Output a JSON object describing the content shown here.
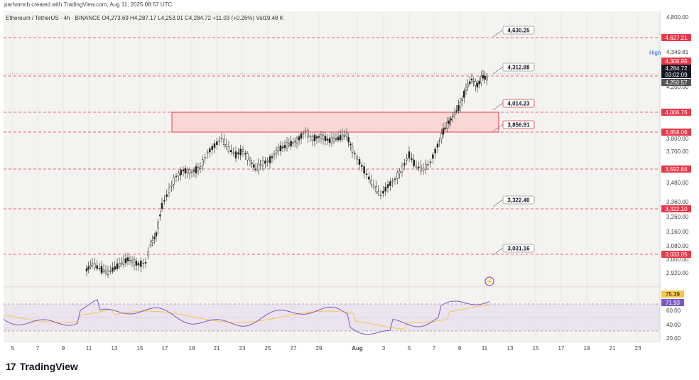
{
  "header": {
    "credit": "parhamnb created with TradingView.com, Aug 11, 2025 08:57 UTC"
  },
  "symbol": {
    "line": "Ethereum / TetherUS · 4h · BINANCE  O4,273.69  H4,287.17  L4,253.91  C4,284.72  +11.03 (+0.26%)  Vol19.48 K"
  },
  "price_scale": {
    "ticks": [
      "4,800.00",
      "4,349.81",
      "4,200.00",
      "3,800.00",
      "3,700.00",
      "3,480.00",
      "3,360.00",
      "3,260.00",
      "3,160.00",
      "3,080.00",
      "3,000.00",
      "2,920.00"
    ],
    "high_label": "High",
    "current_price": "4,284.72",
    "countdown": "03:02:09",
    "price_tags": [
      {
        "text": "4,627.21",
        "color": "#e8394a"
      },
      {
        "text": "4,306.95",
        "color": "#e8394a"
      },
      {
        "text": "4,250.57",
        "color": "#555555"
      },
      {
        "text": "4,006.76",
        "color": "#e8394a"
      },
      {
        "text": "3,858.06",
        "color": "#e8394a"
      },
      {
        "text": "3,592.64",
        "color": "#e8394a"
      },
      {
        "text": "3,322.10",
        "color": "#e8394a"
      },
      {
        "text": "3,033.05",
        "color": "#e8394a"
      }
    ]
  },
  "levels": [
    "4,630.25",
    "4,312.88",
    "4,014.23",
    "3,856.91",
    "3,322.40",
    "3,031.16"
  ],
  "rsi": {
    "ticks": [
      "60.00",
      "40.00",
      "20.00"
    ],
    "value_ma": "75.39",
    "value_rsi": "71.93",
    "color_ma": "#f2c94c",
    "color_rsi": "#7e57c2"
  },
  "time_axis": [
    "5",
    "7",
    "9",
    "11",
    "13",
    "15",
    "17",
    "19",
    "21",
    "23",
    "25",
    "27",
    "29",
    "Aug",
    "3",
    "5",
    "7",
    "9",
    "11",
    "13",
    "15",
    "17",
    "19",
    "21",
    "23"
  ],
  "chart_data": {
    "type": "candlestick",
    "series": [
      {
        "name": "Ethereum / TetherUS",
        "values": [
          2920,
          3000,
          3100,
          3380,
          3600,
          3700,
          3650,
          3780,
          3860,
          3800,
          3700,
          3500,
          3380,
          3460,
          3620,
          3700,
          3800,
          4000,
          4200,
          4284.72
        ]
      }
    ],
    "levels": [
      4630.25,
      4312.88,
      4014.23,
      3856.91,
      3322.4,
      3031.16
    ],
    "zone": [
      3856.91,
      4014.23
    ]
  },
  "brand": {
    "name": "TradingView",
    "mark": "17"
  },
  "colors": {
    "bg": "#f5f3ef",
    "level": "#e8394a",
    "zone_fill": "#f9d9d6",
    "candle": "#222222"
  }
}
